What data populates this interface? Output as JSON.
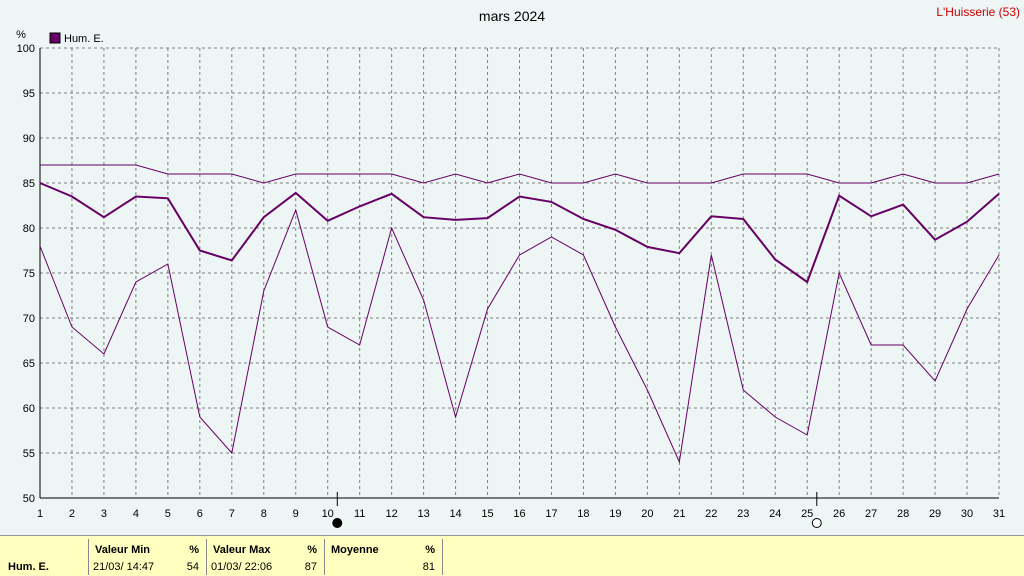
{
  "header": {
    "title": "mars 2024",
    "station": "L'Huisserie (53)",
    "unit": "%"
  },
  "legend": {
    "label": "Hum. E.",
    "color": "#660066"
  },
  "chart_data": {
    "type": "line",
    "title": "mars 2024",
    "ylabel": "%",
    "ylim": [
      50,
      100
    ],
    "yticks": [
      50,
      55,
      60,
      65,
      70,
      75,
      80,
      85,
      90,
      95,
      100
    ],
    "x": [
      1,
      2,
      3,
      4,
      5,
      6,
      7,
      8,
      9,
      10,
      11,
      12,
      13,
      14,
      15,
      16,
      17,
      18,
      19,
      20,
      21,
      22,
      23,
      24,
      25,
      26,
      27,
      28,
      29,
      30,
      31
    ],
    "grid": true,
    "legend_position": "top-left",
    "series": [
      {
        "name": "Hum. E.",
        "role": "mean",
        "color": "#660066",
        "values": [
          85,
          83.5,
          81.2,
          83.5,
          83.3,
          77.5,
          76.4,
          81.2,
          83.9,
          80.8,
          82.4,
          83.8,
          81.2,
          80.9,
          81.1,
          83.5,
          82.9,
          81,
          79.8,
          77.9,
          77.2,
          81.3,
          81,
          76.5,
          74,
          83.6,
          81.3,
          82.6,
          78.7,
          80.7,
          83.8
        ]
      },
      {
        "role": "max",
        "color": "#660066",
        "values": [
          87,
          87,
          87,
          87,
          86,
          86,
          86,
          85,
          86,
          86,
          86,
          86,
          85,
          86,
          85,
          86,
          85,
          85,
          86,
          85,
          85,
          85,
          86,
          86,
          86,
          85,
          85,
          86,
          85,
          85,
          86
        ]
      },
      {
        "role": "min",
        "color": "#660066",
        "values": [
          78,
          69,
          66,
          74,
          76,
          59,
          55,
          73,
          82,
          69,
          67,
          80,
          72,
          59,
          71,
          77,
          79,
          77,
          69,
          62,
          54,
          77,
          62,
          59,
          57,
          75,
          67,
          67,
          63,
          71,
          77
        ]
      }
    ],
    "moon_phases": [
      {
        "day": 10.3,
        "phase": "new"
      },
      {
        "day": 25.3,
        "phase": "full"
      }
    ]
  },
  "summary": {
    "row_label": "Hum.  E.",
    "min": {
      "header": "Valeur Min",
      "unit": "%",
      "datetime": "21/03/  14:47",
      "value": "54"
    },
    "max": {
      "header": "Valeur Max",
      "unit": "%",
      "datetime": "01/03/  22:06",
      "value": "87"
    },
    "mean": {
      "header": "Moyenne",
      "unit": "%",
      "value": "81"
    }
  }
}
